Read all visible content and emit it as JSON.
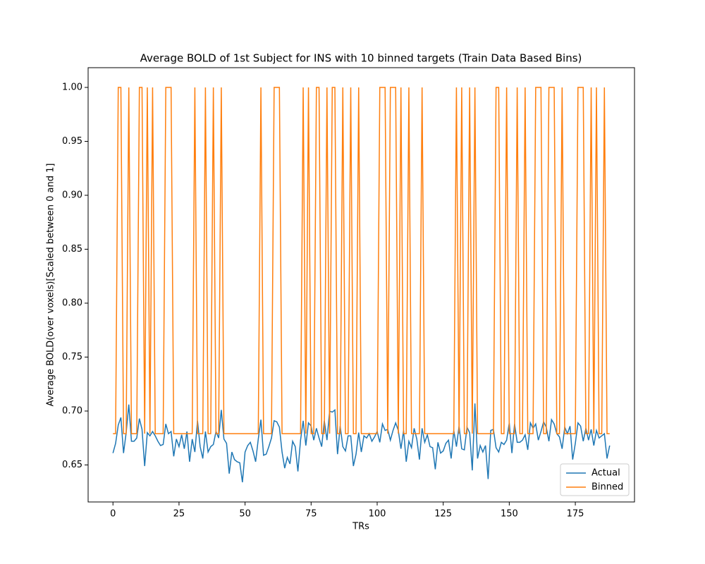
{
  "chart_data": {
    "type": "line",
    "title": "Average BOLD of 1st Subject for INS with 10 binned targets (Train Data Based Bins)",
    "x_label": "TRs",
    "y_label": "Average BOLD(over voxels)[Scaled between 0 and 1]",
    "xlim": [
      -9.4,
      197.4
    ],
    "ylim": [
      0.6157,
      1.0183
    ],
    "xticks": [
      0,
      25,
      50,
      75,
      100,
      125,
      150,
      175
    ],
    "yticks": [
      0.65,
      {
        "value": 0.7,
        "label": "0.70"
      },
      0.75,
      {
        "value": 0.8,
        "label": "0.80"
      },
      0.85,
      {
        "value": 0.9,
        "label": "0.90"
      },
      0.95,
      {
        "value": 1,
        "label": "1.00"
      }
    ],
    "grid": false,
    "legend": "lower right",
    "series": [
      {
        "name": "Actual",
        "color": "#1f77b4",
        "values": [
          0.661,
          0.67,
          0.687,
          0.694,
          0.661,
          0.68,
          0.706,
          0.672,
          0.672,
          0.675,
          0.693,
          0.683,
          0.649,
          0.68,
          0.677,
          0.681,
          0.677,
          0.672,
          0.668,
          0.669,
          0.688,
          0.679,
          0.681,
          0.658,
          0.674,
          0.667,
          0.678,
          0.665,
          0.681,
          0.653,
          0.674,
          0.662,
          0.691,
          0.667,
          0.656,
          0.681,
          0.662,
          0.667,
          0.669,
          0.681,
          0.675,
          0.701,
          0.674,
          0.67,
          0.642,
          0.662,
          0.655,
          0.653,
          0.652,
          0.634,
          0.662,
          0.668,
          0.671,
          0.663,
          0.653,
          0.674,
          0.692,
          0.659,
          0.66,
          0.667,
          0.675,
          0.691,
          0.69,
          0.685,
          0.662,
          0.647,
          0.657,
          0.651,
          0.672,
          0.667,
          0.644,
          0.673,
          0.691,
          0.668,
          0.689,
          0.686,
          0.673,
          0.684,
          0.675,
          0.667,
          0.691,
          0.673,
          0.7,
          0.699,
          0.701,
          0.66,
          0.686,
          0.667,
          0.663,
          0.677,
          0.677,
          0.649,
          0.66,
          0.68,
          0.662,
          0.677,
          0.675,
          0.679,
          0.672,
          0.676,
          0.681,
          0.671,
          0.688,
          0.682,
          0.683,
          0.673,
          0.682,
          0.689,
          0.682,
          0.665,
          0.682,
          0.653,
          0.672,
          0.666,
          0.684,
          0.674,
          0.655,
          0.684,
          0.671,
          0.678,
          0.667,
          0.666,
          0.646,
          0.671,
          0.661,
          0.663,
          0.67,
          0.673,
          0.656,
          0.682,
          0.667,
          0.686,
          0.665,
          0.664,
          0.685,
          0.68,
          0.645,
          0.707,
          0.656,
          0.668,
          0.662,
          0.668,
          0.637,
          0.682,
          0.683,
          0.666,
          0.662,
          0.671,
          0.669,
          0.673,
          0.689,
          0.661,
          0.688,
          0.671,
          0.671,
          0.673,
          0.678,
          0.664,
          0.689,
          0.684,
          0.688,
          0.673,
          0.681,
          0.69,
          0.685,
          0.672,
          0.692,
          0.688,
          0.679,
          0.676,
          0.665,
          0.685,
          0.679,
          0.686,
          0.655,
          0.67,
          0.689,
          0.686,
          0.672,
          0.684,
          0.673,
          0.683,
          0.668,
          0.682,
          0.675,
          0.677,
          0.679,
          0.656,
          0.668
        ]
      },
      {
        "name": "Binned",
        "color": "#ff7f0e",
        "values": [
          0.679,
          0.679,
          1,
          1,
          0.679,
          0.679,
          1,
          0.679,
          0.679,
          0.679,
          1,
          1,
          0.679,
          1,
          0.679,
          1,
          0.679,
          0.679,
          0.679,
          0.679,
          1,
          1,
          1,
          0.679,
          0.679,
          0.679,
          0.679,
          0.679,
          0.679,
          0.679,
          0.679,
          1,
          0.679,
          0.679,
          0.679,
          1,
          0.679,
          0.679,
          1,
          0.679,
          0.679,
          1,
          0.679,
          0.679,
          0.679,
          0.679,
          0.679,
          0.679,
          0.679,
          0.679,
          0.679,
          0.679,
          0.679,
          0.679,
          0.679,
          0.679,
          1,
          0.679,
          0.679,
          0.679,
          0.679,
          1,
          1,
          1,
          0.679,
          0.679,
          0.679,
          0.679,
          0.679,
          0.679,
          0.679,
          0.679,
          1,
          0.679,
          1,
          0.679,
          0.679,
          1,
          1,
          0.679,
          0.679,
          1,
          0.679,
          1,
          1,
          0.679,
          0.679,
          1,
          0.679,
          0.679,
          1,
          0.679,
          0.679,
          1,
          0.679,
          0.679,
          0.679,
          0.679,
          0.679,
          0.679,
          0.679,
          1,
          1,
          1,
          0.679,
          1,
          1,
          1,
          0.679,
          1,
          0.679,
          0.679,
          1,
          0.679,
          0.679,
          0.679,
          0.679,
          1,
          0.679,
          0.679,
          0.679,
          0.679,
          0.679,
          0.679,
          0.679,
          0.679,
          0.679,
          0.679,
          0.679,
          0.679,
          1,
          0.679,
          1,
          0.679,
          0.679,
          1,
          0.679,
          1,
          0.679,
          0.679,
          0.679,
          0.679,
          0.679,
          0.679,
          0.679,
          1,
          1,
          0.679,
          0.679,
          1,
          0.679,
          0.679,
          0.679,
          1,
          0.679,
          0.679,
          1,
          0.679,
          0.679,
          0.679,
          1,
          1,
          1,
          0.679,
          0.679,
          1,
          1,
          1,
          0.679,
          0.679,
          1,
          0.679,
          0.679,
          0.679,
          0.679,
          0.679,
          1,
          1,
          1,
          0.679,
          0.679,
          1,
          0.679,
          1,
          0.679,
          0.679,
          1,
          0.679,
          0.679
        ]
      }
    ]
  }
}
